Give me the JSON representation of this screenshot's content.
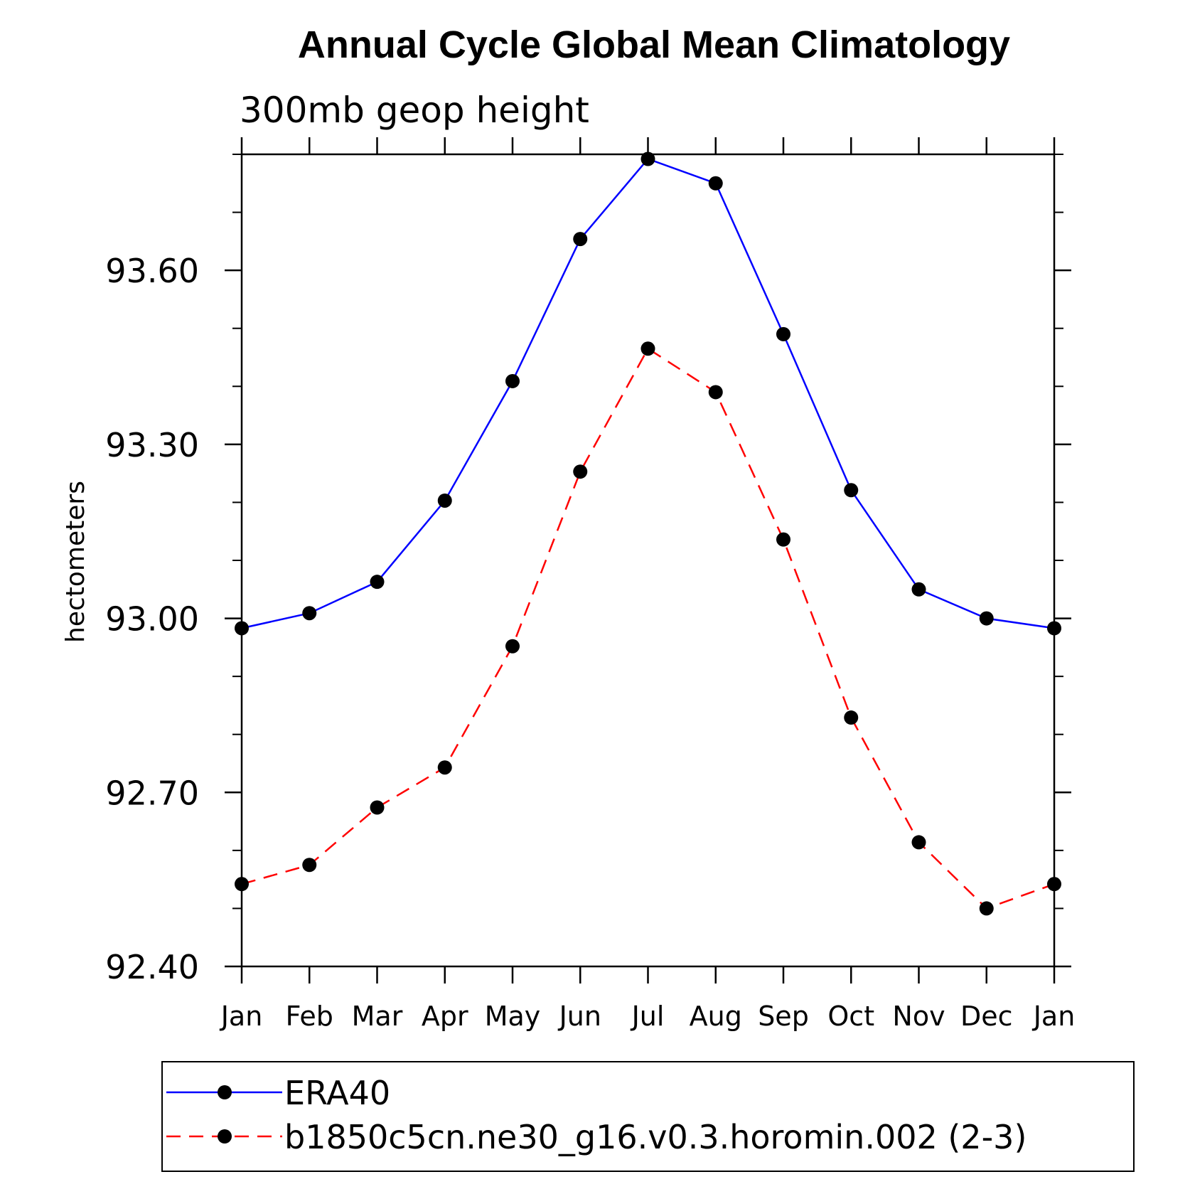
{
  "chart_data": {
    "type": "line",
    "title": "Annual Cycle Global Mean Climatology",
    "subtitle": "300mb geop height",
    "ylabel": "hectometers",
    "xlabel": "",
    "categories": [
      "Jan",
      "Feb",
      "Mar",
      "Apr",
      "May",
      "Jun",
      "Jul",
      "Aug",
      "Sep",
      "Oct",
      "Nov",
      "Dec",
      "Jan"
    ],
    "ylim": [
      92.4,
      93.8
    ],
    "yticks": [
      "92.40",
      "92.70",
      "93.00",
      "93.30",
      "93.60"
    ],
    "ytick_values": [
      92.4,
      92.7,
      93.0,
      93.3,
      93.6
    ],
    "y_minor_step": 0.1,
    "grid": false,
    "legend_position": "bottom",
    "series": [
      {
        "name": "ERA40",
        "color": "#0000ff",
        "dash": "solid",
        "marker": "filled-circle",
        "values": [
          92.983,
          93.009,
          93.063,
          93.203,
          93.409,
          93.654,
          93.792,
          93.75,
          93.49,
          93.221,
          93.05,
          93.0,
          92.983
        ]
      },
      {
        "name": "b1850c5cn.ne30_g16.v0.3.horomin.002 (2-3)",
        "color": "#ff0000",
        "dash": "dashed",
        "marker": "filled-circle",
        "values": [
          92.542,
          92.575,
          92.674,
          92.743,
          92.952,
          93.253,
          93.465,
          93.39,
          93.136,
          92.829,
          92.614,
          92.5,
          92.542
        ]
      }
    ]
  }
}
